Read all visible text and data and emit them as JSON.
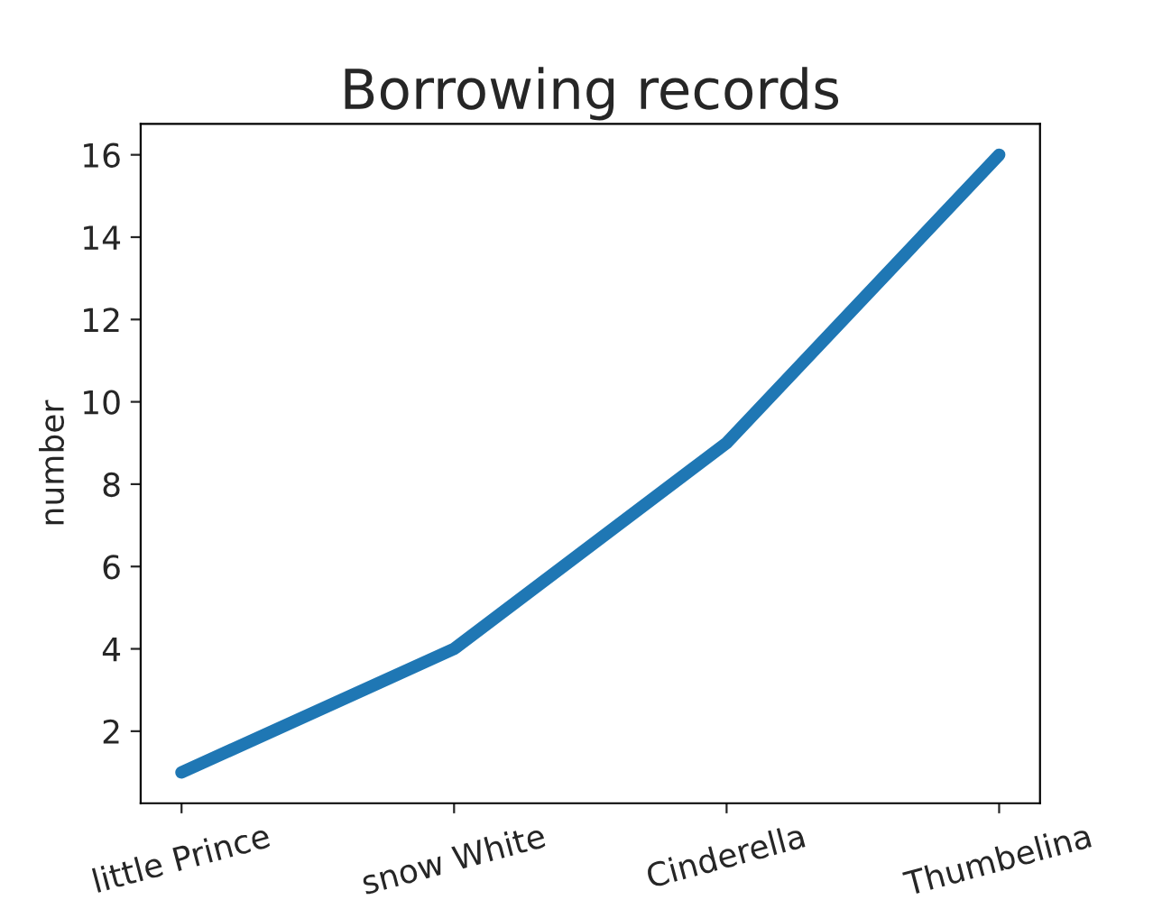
{
  "chart_data": {
    "type": "line",
    "title": "Borrowing records",
    "ylabel": "number",
    "categories": [
      "little Prince",
      "snow White",
      "Cinderella",
      "Thumbelina"
    ],
    "series": [
      {
        "color": "#1f77b4",
        "values": [
          1,
          4,
          9,
          16
        ]
      }
    ],
    "ylim": [
      0.25,
      16.75
    ],
    "yticks": [
      2,
      4,
      6,
      8,
      10,
      12,
      14,
      16
    ],
    "grid": false,
    "legend": false,
    "marker": "none",
    "line_style": "solid"
  }
}
